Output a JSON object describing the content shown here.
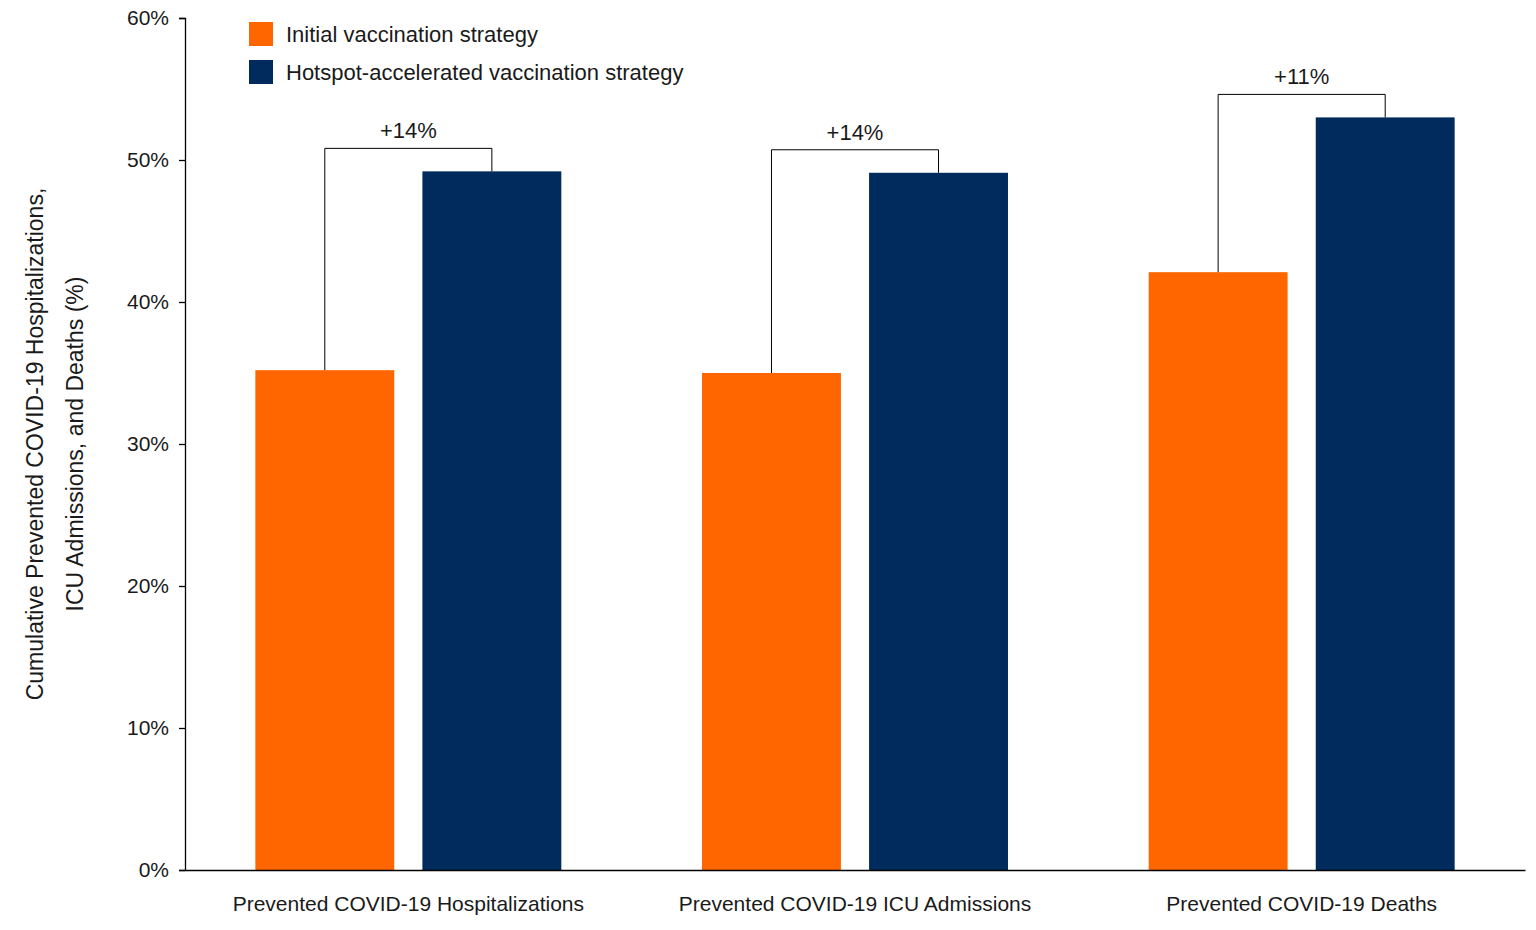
{
  "chart_data": {
    "type": "bar",
    "y_label": [
      "Cumulative Prevented COVID-19 Hospitalizations,",
      "ICU Admissions, and Deaths (%)"
    ],
    "categories": [
      "Prevented COVID-19 Hospitalizations",
      "Prevented COVID-19 ICU Admissions",
      "Prevented COVID-19 Deaths"
    ],
    "series": [
      {
        "name": "Initial vaccination strategy",
        "color": "#ff6600",
        "values": [
          35.2,
          35.0,
          42.1
        ]
      },
      {
        "name": "Hotspot-accelerated vaccination strategy",
        "color": "#002b5c",
        "values": [
          49.2,
          49.1,
          53.0
        ]
      }
    ],
    "annotations": [
      "+14%",
      "+14%",
      "+11%"
    ],
    "ylim": [
      0,
      60
    ],
    "yticks": [
      {
        "value": 0,
        "label": "0%"
      },
      {
        "value": 10,
        "label": "10%"
      },
      {
        "value": 20,
        "label": "20%"
      },
      {
        "value": 30,
        "label": "30%"
      },
      {
        "value": 40,
        "label": "40%"
      },
      {
        "value": 50,
        "label": "50%"
      },
      {
        "value": 60,
        "label": "60%"
      }
    ],
    "grid": false,
    "legend": "upper left"
  }
}
